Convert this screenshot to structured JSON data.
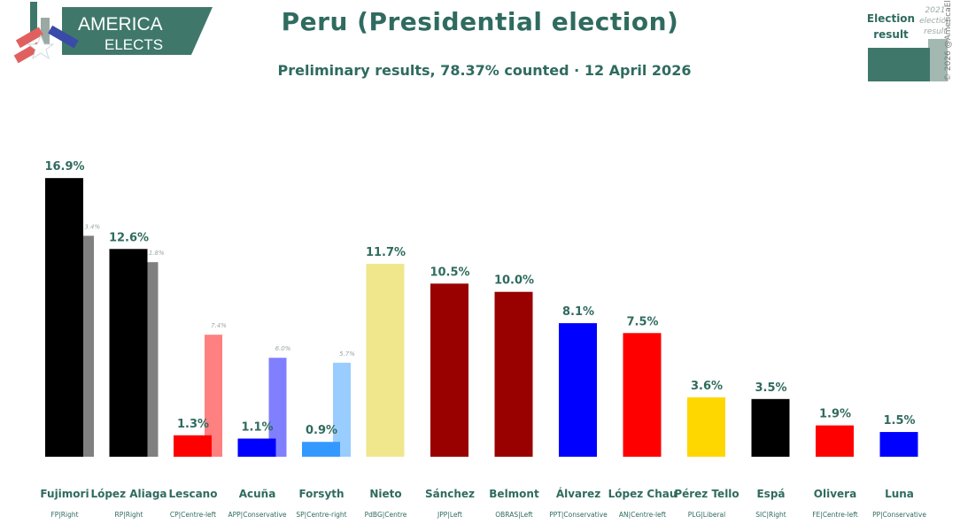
{
  "header": {
    "title": "Peru (Presidential election)",
    "subtitle": "Preliminary results, 78.37% counted · 12 April 2026"
  },
  "logo": {
    "line1": "AMERICA",
    "line2": "ELECTS"
  },
  "legend": {
    "current_label_line1": "Election",
    "current_label_line2": "result",
    "previous_label_line1": "2021",
    "previous_label_line2": "election",
    "previous_label_line3": "result"
  },
  "copyright": "© 2026 @AmericaElige",
  "colors": {
    "accent": "#2f6b5f",
    "previous_result": "#808080"
  },
  "chart_data": {
    "type": "bar",
    "categories": [
      "Fujimori",
      "López Aliaga",
      "Lescano",
      "Acuña",
      "Forsyth",
      "Nieto",
      "Sánchez",
      "Belmont",
      "Álvarez",
      "López Chau",
      "Pérez Tello",
      "Espá",
      "Olivera",
      "Luna"
    ],
    "parties": [
      "FP|Right",
      "RP|Right",
      "CP|Centre-left",
      "APP|Conservative",
      "SP|Centre-right",
      "PdBG|Centre",
      "JPP|Left",
      "OBRAS|Left",
      "PPT|Conservative",
      "AN|Centre-left",
      "PLG|Liberal",
      "SIC|Right",
      "FE|Centre-left",
      "PP|Conservative"
    ],
    "series": [
      {
        "name": "Election result",
        "values": [
          16.9,
          12.6,
          1.3,
          1.1,
          0.9,
          11.7,
          10.5,
          10.0,
          8.1,
          7.5,
          3.6,
          3.5,
          1.9,
          1.5
        ],
        "labels": [
          "16.9%",
          "12.6%",
          "1.3%",
          "1.1%",
          "0.9%",
          "11.7%",
          "10.5%",
          "10.0%",
          "8.1%",
          "7.5%",
          "3.6%",
          "3.5%",
          "1.9%",
          "1.5%"
        ],
        "colors": [
          "#000000",
          "#000000",
          "#ff0000",
          "#0000ff",
          "#3399ff",
          "#f0e68c",
          "#990000",
          "#990000",
          "#0000ff",
          "#ff0000",
          "#ffd700",
          "#000000",
          "#ff0000",
          "#0000ff"
        ]
      },
      {
        "name": "2021 election result",
        "values": [
          13.4,
          11.8,
          7.4,
          6.0,
          5.7,
          null,
          null,
          null,
          null,
          null,
          null,
          null,
          null,
          null
        ],
        "labels": [
          "13.4%",
          "11.8%",
          "7.4%",
          "6.0%",
          "5.7%",
          "",
          "",
          "",
          "",
          "",
          "",
          "",
          "",
          ""
        ],
        "colors": [
          "#808080",
          "#808080",
          "#ff8080",
          "#8080ff",
          "#99ccff",
          null,
          null,
          null,
          null,
          null,
          null,
          null,
          null,
          null
        ]
      }
    ],
    "ylim": [
      0,
      17.5
    ],
    "grid": false
  }
}
